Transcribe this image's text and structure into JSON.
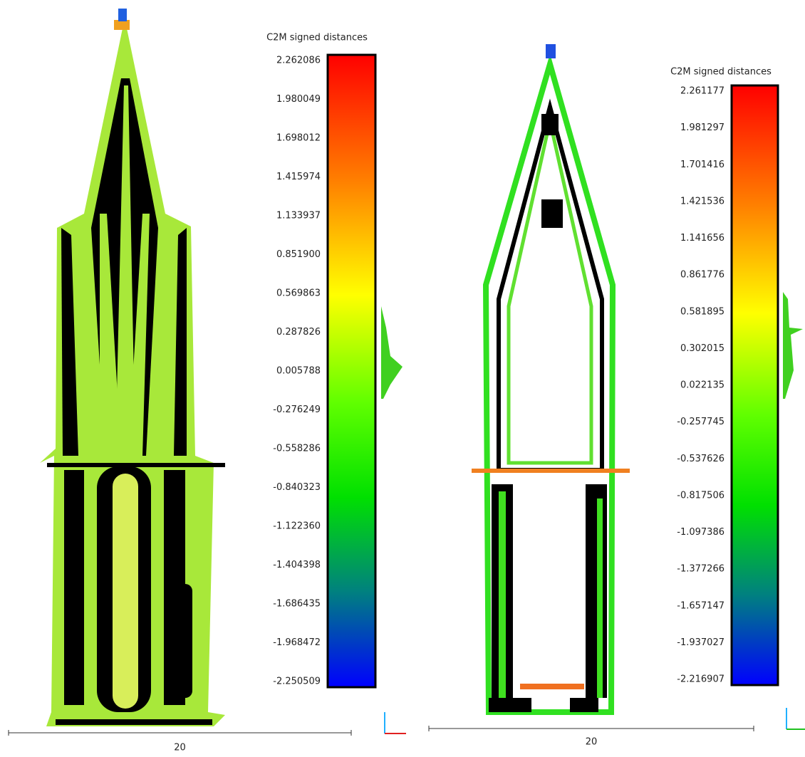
{
  "panels": [
    {
      "scale": {
        "title": "C2M signed distances",
        "labels": [
          "2.262086",
          "1.980049",
          "1.698012",
          "1.415974",
          "1.133937",
          "0.851900",
          "0.569863",
          "0.287826",
          "0.005788",
          "-0.276249",
          "-0.558286",
          "-0.840323",
          "-1.122360",
          "-1.404398",
          "-1.686435",
          "-1.968472",
          "-2.250509"
        ]
      },
      "scalebar": {
        "label": "20"
      }
    },
    {
      "scale": {
        "title": "C2M signed distances",
        "labels": [
          "2.261177",
          "1.981297",
          "1.701416",
          "1.421536",
          "1.141656",
          "0.861776",
          "0.581895",
          "0.302015",
          "0.022135",
          "-0.257745",
          "-0.537626",
          "-0.817506",
          "-1.097386",
          "-1.377266",
          "-1.657147",
          "-1.937027",
          "-2.216907"
        ]
      },
      "scalebar": {
        "label": "20"
      }
    }
  ]
}
